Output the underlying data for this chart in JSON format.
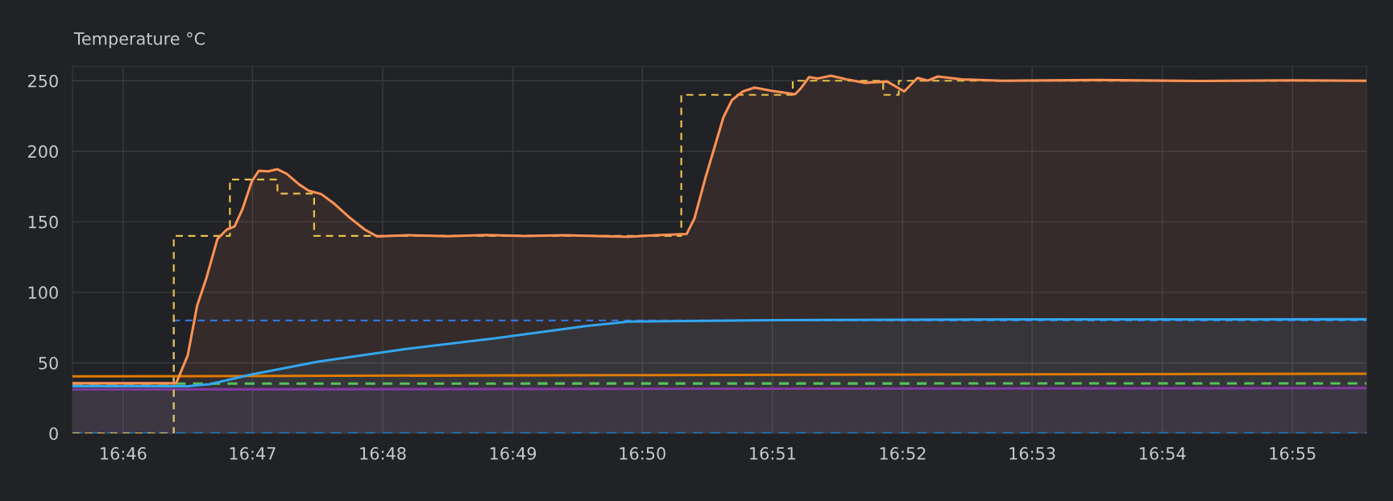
{
  "chart_data": {
    "type": "line",
    "title": "Temperature °C",
    "grid": true,
    "xlim": [
      16.7602,
      16.9262
    ],
    "ylim": [
      0,
      260
    ],
    "xticks": [
      {
        "value": 16.7667,
        "label": "16:46"
      },
      {
        "value": 16.7833,
        "label": "16:47"
      },
      {
        "value": 16.8,
        "label": "16:48"
      },
      {
        "value": 16.8167,
        "label": "16:49"
      },
      {
        "value": 16.8333,
        "label": "16:50"
      },
      {
        "value": 16.85,
        "label": "16:51"
      },
      {
        "value": 16.8667,
        "label": "16:52"
      },
      {
        "value": 16.8833,
        "label": "16:53"
      },
      {
        "value": 16.9,
        "label": "16:54"
      },
      {
        "value": 16.9167,
        "label": "16:55"
      }
    ],
    "yticks": [
      0,
      50,
      100,
      150,
      200,
      250
    ],
    "series": [
      {
        "type": "area",
        "color": "#7e3b9e",
        "line_style": "solid",
        "x": [
          16.7602,
          16.9262
        ],
        "values": [
          31.1,
          32.1
        ]
      },
      {
        "color": "#1f78c1",
        "line_style": "dashed",
        "x": [
          16.7602,
          16.9262
        ],
        "values": [
          0,
          0
        ]
      },
      {
        "color": "#e07b00",
        "line_style": "solid",
        "x": [
          16.7602,
          16.8333,
          16.9262
        ],
        "values": [
          40.4,
          41.3,
          42.3
        ]
      },
      {
        "color": "#56c25b",
        "line_style": "dashed",
        "x": [
          16.7602,
          16.9262
        ],
        "values": [
          35.3,
          35.4
        ]
      },
      {
        "type": "step",
        "color": "#3274d9",
        "line_style": "dashed",
        "x": [
          16.7602,
          16.7732,
          16.9262
        ],
        "values": [
          0,
          80,
          80
        ]
      },
      {
        "type": "area",
        "color": "#33a6f0",
        "line_style": "solid",
        "x": [
          16.7602,
          16.775,
          16.7778,
          16.783,
          16.7917,
          16.8028,
          16.8144,
          16.8261,
          16.8315,
          16.85,
          16.8833,
          16.9262
        ],
        "values": [
          33.4,
          33.4,
          34.9,
          41.5,
          50.9,
          59.7,
          67.4,
          76.1,
          79.2,
          80.3,
          80.8,
          80.9
        ]
      },
      {
        "type": "step",
        "color": "#e8c04a",
        "line_style": "dashed",
        "x": [
          16.7602,
          16.7732,
          16.7804,
          16.7865,
          16.7912,
          16.8383,
          16.8526,
          16.8642,
          16.8662,
          16.9262
        ],
        "values": [
          0,
          140,
          180,
          170,
          140,
          240,
          250,
          240,
          250,
          250
        ]
      },
      {
        "type": "area",
        "color": "#ff9254",
        "line_style": "solid",
        "x": [
          16.7602,
          16.7735,
          16.775,
          16.7762,
          16.7774,
          16.7788,
          16.78,
          16.781,
          16.782,
          16.7832,
          16.7841,
          16.7853,
          16.7865,
          16.7877,
          16.7893,
          16.7905,
          16.7921,
          16.7937,
          16.7957,
          16.7977,
          16.7993,
          16.8033,
          16.8083,
          16.8133,
          16.8183,
          16.8233,
          16.8283,
          16.8315,
          16.835,
          16.839,
          16.84,
          16.8414,
          16.8425,
          16.8437,
          16.8448,
          16.8462,
          16.8477,
          16.8499,
          16.8529,
          16.8536,
          16.8547,
          16.8558,
          16.8575,
          16.8595,
          16.8618,
          16.8647,
          16.8669,
          16.8686,
          16.8699,
          16.8712,
          16.8743,
          16.8795,
          16.8917,
          16.905,
          16.9167,
          16.9262
        ],
        "values": [
          35.5,
          35.5,
          55.5,
          90.7,
          110.4,
          137.9,
          144.5,
          146.7,
          158.8,
          178.5,
          186.2,
          185.8,
          187.3,
          184,
          176.4,
          172,
          169.7,
          163.2,
          153.3,
          144.5,
          139.6,
          140.5,
          139.8,
          140.6,
          139.9,
          140.5,
          139.8,
          139.3,
          140.5,
          141.4,
          152.6,
          181.2,
          201.6,
          224,
          236.3,
          242.4,
          245.1,
          242.8,
          240.4,
          244.4,
          252.6,
          251.6,
          253.6,
          251,
          248.5,
          249.5,
          242.4,
          252,
          250.1,
          253,
          251,
          250,
          250.5,
          249.8,
          250.3,
          250
        ]
      }
    ]
  }
}
